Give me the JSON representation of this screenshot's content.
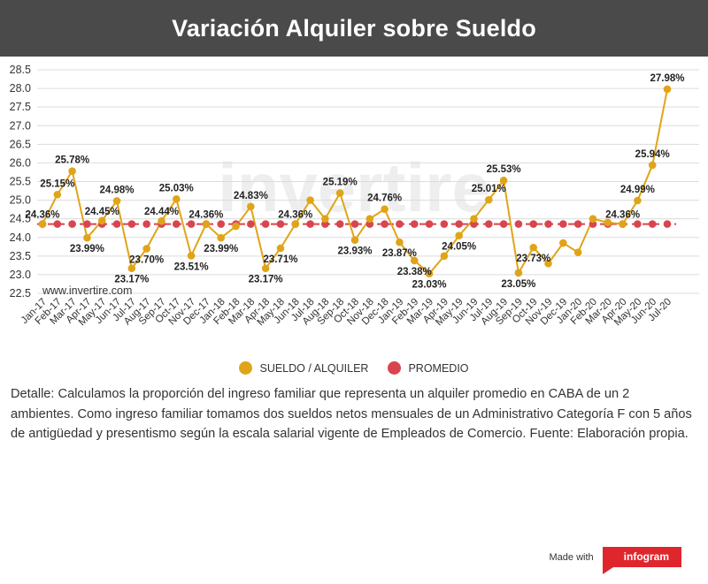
{
  "header": {
    "title": "Variación Alquiler sobre Sueldo"
  },
  "watermark": {
    "text": "invertire"
  },
  "chart_data": {
    "type": "line",
    "title": "Variación Alquiler sobre Sueldo",
    "xlabel": "",
    "ylabel": "",
    "ylim": [
      22.5,
      28.5
    ],
    "yticks": [
      22.5,
      23.0,
      23.5,
      24.0,
      24.5,
      25.0,
      25.5,
      26.0,
      26.5,
      27.0,
      27.5,
      28.0,
      28.5
    ],
    "ytick_labels": [
      "22.5",
      "23.0",
      "23.5",
      "24.0",
      "24.5",
      "25.0",
      "25.5",
      "26.0",
      "26.5",
      "27.0",
      "27.5",
      "28.0",
      "28.5"
    ],
    "grid": true,
    "legend_position": "bottom",
    "categories": [
      "Jan-17",
      "Feb-17",
      "Mar-17",
      "Apr-17",
      "May-17",
      "Jun-17",
      "Jul-17",
      "Aug-17",
      "Sep-17",
      "Oct-17",
      "Nov-17",
      "Dec-17",
      "Jan-18",
      "Feb-18",
      "Mar-18",
      "Apr-18",
      "May-18",
      "Jun-18",
      "Jul-18",
      "Aug-18",
      "Sep-18",
      "Oct-18",
      "Nov-18",
      "Dec-18",
      "Jan-19",
      "Feb-19",
      "Mar-19",
      "Apr-19",
      "May-19",
      "Jun-19",
      "Jul-19",
      "Aug-19",
      "Sep-19",
      "Oct-19",
      "Nov-19",
      "Dec-19",
      "Jan-20",
      "Feb-20",
      "Mar-20",
      "Apr-20",
      "May-20",
      "Jun-20",
      "Jul-20"
    ],
    "series": [
      {
        "name": "SUELDO / ALQUILER",
        "color": "#e0a418",
        "values": [
          24.36,
          25.15,
          25.78,
          23.99,
          24.45,
          24.98,
          23.17,
          23.7,
          24.44,
          25.03,
          23.51,
          24.36,
          23.99,
          24.3,
          24.83,
          23.17,
          23.71,
          24.36,
          25.0,
          24.5,
          25.19,
          23.93,
          24.5,
          24.76,
          23.87,
          23.38,
          23.03,
          23.5,
          24.05,
          24.5,
          25.01,
          25.53,
          23.05,
          23.73,
          23.3,
          23.85,
          23.6,
          24.5,
          24.4,
          24.36,
          24.99,
          25.94,
          27.98
        ],
        "labels": [
          "24.36%",
          "25.15%",
          "25.78%",
          "23.99%",
          "24.45%",
          "24.98%",
          "23.17%",
          "23.70%",
          "24.44%",
          "25.03%",
          "23.51%",
          "24.36%",
          "23.99%",
          "",
          "24.83%",
          "23.17%",
          "23.71%",
          "24.36%",
          "",
          "",
          "25.19%",
          "23.93%",
          "",
          "24.76%",
          "23.87%",
          "23.38%",
          "23.03%",
          "",
          "24.05%",
          "",
          "25.01%",
          "25.53%",
          "23.05%",
          "23.73%",
          "",
          "",
          "",
          "",
          "",
          "24.36%",
          "24.99%",
          "25.94%",
          "27.98%"
        ]
      },
      {
        "name": "PROMEDIO",
        "color": "#d9454f",
        "values": [
          24.36,
          24.36,
          24.36,
          24.36,
          24.36,
          24.36,
          24.36,
          24.36,
          24.36,
          24.36,
          24.36,
          24.36,
          24.36,
          24.36,
          24.36,
          24.36,
          24.36,
          24.36,
          24.36,
          24.36,
          24.36,
          24.36,
          24.36,
          24.36,
          24.36,
          24.36,
          24.36,
          24.36,
          24.36,
          24.36,
          24.36,
          24.36,
          24.36,
          24.36,
          24.36,
          24.36,
          24.36,
          24.36,
          24.36,
          24.36,
          24.36,
          24.36,
          24.36
        ]
      }
    ],
    "annotation": "www.invertire.com"
  },
  "legend": {
    "items": [
      {
        "label": "SUELDO / ALQUILER",
        "color": "#e0a418"
      },
      {
        "label": "PROMEDIO",
        "color": "#d9454f"
      }
    ]
  },
  "details": {
    "text": "Detalle: Calculamos la proporción del ingreso familiar que representa un alquiler promedio en CABA de un 2 ambientes. Como ingreso familiar tomamos dos sueldos netos mensuales de un Administrativo Categoría F con 5 años de antigüedad y presentismo según la escala salarial vigente de Empleados de Comercio. Fuente: Elaboración propia."
  },
  "footer": {
    "made_with": "Made with",
    "brand": "infogram"
  }
}
